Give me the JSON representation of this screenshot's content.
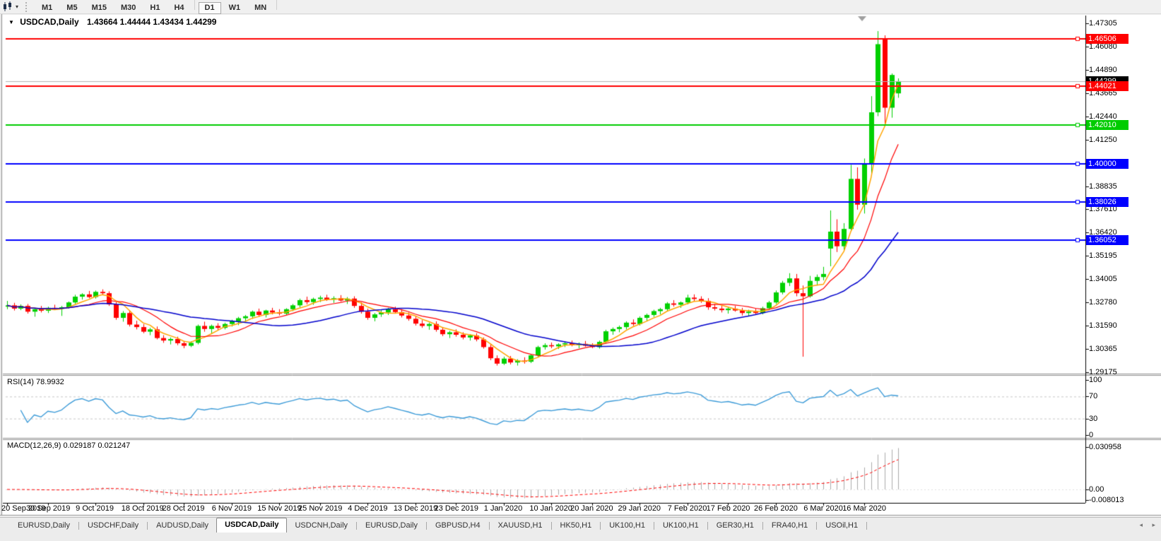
{
  "toolbar": {
    "caret": "▾",
    "timeframes": [
      "M1",
      "M5",
      "M15",
      "M30",
      "H1",
      "H4",
      "D1",
      "W1",
      "MN"
    ],
    "active_timeframe": "D1"
  },
  "chart": {
    "collapse_arrow": "▼",
    "title": "USDCAD,Daily",
    "ohlc_text": "1.43664 1.44444 1.43434 1.44299",
    "price_axis_ticks": [
      "1.47305",
      "1.46080",
      "1.44890",
      "1.43665",
      "1.42440",
      "1.41250",
      "1.38835",
      "1.37610",
      "1.36420",
      "1.35195",
      "1.34005",
      "1.32780",
      "1.31590",
      "1.30365",
      "1.29175"
    ],
    "price_lines": [
      {
        "price": 1.46506,
        "label": "1.46506",
        "color": "#FF0000"
      },
      {
        "price": 1.44021,
        "label": "1.44021",
        "color": "#FF0000"
      },
      {
        "price": 1.4201,
        "label": "1.42010",
        "color": "#00CC00"
      },
      {
        "price": 1.4,
        "label": "1.40000",
        "color": "#0000FF"
      },
      {
        "price": 1.38026,
        "label": "1.38026",
        "color": "#0000FF"
      },
      {
        "price": 1.36052,
        "label": "1.36052",
        "color": "#0000FF"
      }
    ],
    "current_price": {
      "price": 1.44299,
      "label": "1.44299",
      "line_color": "#b4b4b4",
      "label_bg": "#000000"
    }
  },
  "chart_data": {
    "type": "candlestick",
    "symbol": "USDCAD",
    "timeframe": "Daily",
    "last_bar": {
      "open": 1.43664,
      "high": 1.44444,
      "low": 1.43434,
      "close": 1.44299
    },
    "price_axis_range": {
      "top": 1.47305,
      "bottom": 1.29175
    },
    "up_color": "#00D000",
    "down_color": "#FF0000",
    "moving_averages": [
      {
        "name": "fast",
        "period": 5,
        "color": "#FFA500"
      },
      {
        "name": "mid",
        "period": 10,
        "color": "#FF0000"
      },
      {
        "name": "slow",
        "period": 25,
        "color": "#0000CC"
      }
    ],
    "candles": [
      [
        1.3258,
        1.3288,
        1.3245,
        1.3265
      ],
      [
        1.3265,
        1.3278,
        1.3238,
        1.3248
      ],
      [
        1.3248,
        1.327,
        1.324,
        1.3262
      ],
      [
        1.3262,
        1.3272,
        1.3222,
        1.3232
      ],
      [
        1.3232,
        1.3252,
        1.3206,
        1.3245
      ],
      [
        1.3245,
        1.3262,
        1.3228,
        1.3237
      ],
      [
        1.3237,
        1.3258,
        1.3225,
        1.3252
      ],
      [
        1.3252,
        1.3268,
        1.3242,
        1.3247
      ],
      [
        1.3247,
        1.3262,
        1.321,
        1.3255
      ],
      [
        1.3255,
        1.3285,
        1.3248,
        1.328
      ],
      [
        1.328,
        1.332,
        1.3272,
        1.331
      ],
      [
        1.331,
        1.3328,
        1.3295,
        1.3322
      ],
      [
        1.3322,
        1.334,
        1.3302,
        1.3308
      ],
      [
        1.3308,
        1.3342,
        1.33,
        1.3335
      ],
      [
        1.3335,
        1.3348,
        1.332,
        1.3328
      ],
      [
        1.3328,
        1.3338,
        1.3262,
        1.327
      ],
      [
        1.327,
        1.3282,
        1.319,
        1.32
      ],
      [
        1.32,
        1.3235,
        1.318,
        1.3225
      ],
      [
        1.3225,
        1.324,
        1.3155,
        1.3165
      ],
      [
        1.3165,
        1.3185,
        1.314,
        1.3152
      ],
      [
        1.3152,
        1.3168,
        1.312,
        1.3128
      ],
      [
        1.3128,
        1.3148,
        1.311,
        1.314
      ],
      [
        1.314,
        1.3155,
        1.3088,
        1.3095
      ],
      [
        1.3095,
        1.311,
        1.307,
        1.3082
      ],
      [
        1.3082,
        1.3098,
        1.3062,
        1.309
      ],
      [
        1.309,
        1.3102,
        1.3058,
        1.3068
      ],
      [
        1.3068,
        1.308,
        1.3042,
        1.3055
      ],
      [
        1.3055,
        1.3078,
        1.3048,
        1.307
      ],
      [
        1.307,
        1.3165,
        1.3062,
        1.3158
      ],
      [
        1.3158,
        1.318,
        1.3128,
        1.3142
      ],
      [
        1.3142,
        1.3165,
        1.3118,
        1.3158
      ],
      [
        1.3158,
        1.3172,
        1.3135,
        1.3148
      ],
      [
        1.3148,
        1.3175,
        1.314,
        1.3168
      ],
      [
        1.3168,
        1.319,
        1.3155,
        1.3182
      ],
      [
        1.3182,
        1.3205,
        1.3162,
        1.3198
      ],
      [
        1.3198,
        1.3215,
        1.318,
        1.3208
      ],
      [
        1.3208,
        1.3238,
        1.3195,
        1.3232
      ],
      [
        1.3232,
        1.3248,
        1.3205,
        1.3215
      ],
      [
        1.3215,
        1.3242,
        1.3202,
        1.3238
      ],
      [
        1.3238,
        1.3252,
        1.3218,
        1.3228
      ],
      [
        1.3228,
        1.3245,
        1.3212,
        1.3222
      ],
      [
        1.3222,
        1.325,
        1.3215,
        1.3245
      ],
      [
        1.3245,
        1.3272,
        1.3235,
        1.3265
      ],
      [
        1.3265,
        1.33,
        1.3255,
        1.3292
      ],
      [
        1.3292,
        1.331,
        1.327,
        1.3282
      ],
      [
        1.3282,
        1.3305,
        1.3268,
        1.3298
      ],
      [
        1.3298,
        1.3315,
        1.3282,
        1.3305
      ],
      [
        1.3305,
        1.332,
        1.3288,
        1.3295
      ],
      [
        1.3295,
        1.3312,
        1.3278,
        1.3302
      ],
      [
        1.3302,
        1.3318,
        1.3285,
        1.329
      ],
      [
        1.329,
        1.3308,
        1.3272,
        1.33
      ],
      [
        1.33,
        1.3312,
        1.3252,
        1.3262
      ],
      [
        1.3262,
        1.328,
        1.3222,
        1.3232
      ],
      [
        1.3232,
        1.3248,
        1.319,
        1.32
      ],
      [
        1.32,
        1.3225,
        1.3182,
        1.3218
      ],
      [
        1.3218,
        1.324,
        1.3205,
        1.3228
      ],
      [
        1.3228,
        1.3252,
        1.3215,
        1.3245
      ],
      [
        1.3245,
        1.3258,
        1.3222,
        1.323
      ],
      [
        1.323,
        1.3245,
        1.3202,
        1.3212
      ],
      [
        1.3212,
        1.3228,
        1.3185,
        1.3195
      ],
      [
        1.3195,
        1.321,
        1.316,
        1.317
      ],
      [
        1.317,
        1.3188,
        1.3148,
        1.3158
      ],
      [
        1.3158,
        1.3175,
        1.3138,
        1.3168
      ],
      [
        1.3168,
        1.3182,
        1.3128,
        1.3138
      ],
      [
        1.3138,
        1.3152,
        1.3105,
        1.3115
      ],
      [
        1.3115,
        1.3132,
        1.3095,
        1.3125
      ],
      [
        1.3125,
        1.314,
        1.3102,
        1.3112
      ],
      [
        1.3112,
        1.3125,
        1.3088,
        1.3098
      ],
      [
        1.3098,
        1.3115,
        1.3082,
        1.3108
      ],
      [
        1.3108,
        1.312,
        1.3078,
        1.3088
      ],
      [
        1.3088,
        1.3098,
        1.304,
        1.3048
      ],
      [
        1.3048,
        1.3062,
        1.298,
        1.299
      ],
      [
        1.299,
        1.3005,
        1.2952,
        1.2962
      ],
      [
        1.2962,
        1.2998,
        1.2955,
        1.2988
      ],
      [
        1.2988,
        1.3002,
        1.2958,
        1.2968
      ],
      [
        1.2968,
        1.2985,
        1.2952,
        1.2978
      ],
      [
        1.2978,
        1.2995,
        1.2962,
        1.2972
      ],
      [
        1.2972,
        1.3012,
        1.2965,
        1.3005
      ],
      [
        1.3005,
        1.3055,
        1.2998,
        1.3048
      ],
      [
        1.3048,
        1.3068,
        1.3035,
        1.3058
      ],
      [
        1.3058,
        1.3072,
        1.3042,
        1.3052
      ],
      [
        1.3052,
        1.3068,
        1.3038,
        1.3062
      ],
      [
        1.3062,
        1.3078,
        1.3048,
        1.3068
      ],
      [
        1.3068,
        1.3082,
        1.3052,
        1.3058
      ],
      [
        1.3058,
        1.3072,
        1.3042,
        1.3065
      ],
      [
        1.3065,
        1.308,
        1.305,
        1.3055
      ],
      [
        1.3055,
        1.3068,
        1.3042,
        1.3048
      ],
      [
        1.3048,
        1.3082,
        1.304,
        1.3075
      ],
      [
        1.3075,
        1.3138,
        1.3068,
        1.313
      ],
      [
        1.313,
        1.315,
        1.3112,
        1.3142
      ],
      [
        1.3142,
        1.316,
        1.3125,
        1.3152
      ],
      [
        1.3152,
        1.3182,
        1.314,
        1.3175
      ],
      [
        1.3175,
        1.3192,
        1.3158,
        1.3168
      ],
      [
        1.3168,
        1.3208,
        1.316,
        1.32
      ],
      [
        1.32,
        1.3222,
        1.3185,
        1.3215
      ],
      [
        1.3215,
        1.3242,
        1.3205,
        1.3235
      ],
      [
        1.3235,
        1.3252,
        1.3218,
        1.3245
      ],
      [
        1.3245,
        1.3282,
        1.3235,
        1.3275
      ],
      [
        1.3275,
        1.3292,
        1.3258,
        1.3268
      ],
      [
        1.3268,
        1.3285,
        1.3252,
        1.328
      ],
      [
        1.328,
        1.332,
        1.327,
        1.3305
      ],
      [
        1.3305,
        1.3322,
        1.3288,
        1.3298
      ],
      [
        1.3298,
        1.3312,
        1.3278,
        1.3288
      ],
      [
        1.3288,
        1.3302,
        1.3242,
        1.3255
      ],
      [
        1.3255,
        1.3272,
        1.3238,
        1.3248
      ],
      [
        1.3248,
        1.3262,
        1.3228,
        1.324
      ],
      [
        1.324,
        1.3255,
        1.3222,
        1.3248
      ],
      [
        1.3248,
        1.3262,
        1.3232,
        1.3238
      ],
      [
        1.3238,
        1.3252,
        1.3212,
        1.3225
      ],
      [
        1.3225,
        1.3242,
        1.3208,
        1.3232
      ],
      [
        1.3232,
        1.3248,
        1.3215,
        1.3225
      ],
      [
        1.3225,
        1.3258,
        1.3218,
        1.325
      ],
      [
        1.325,
        1.3288,
        1.3242,
        1.328
      ],
      [
        1.328,
        1.3342,
        1.3272,
        1.3332
      ],
      [
        1.3332,
        1.3392,
        1.3322,
        1.3382
      ],
      [
        1.3382,
        1.3432,
        1.3365,
        1.3405
      ],
      [
        1.3405,
        1.3428,
        1.3312,
        1.3328
      ],
      [
        1.3328,
        1.3368,
        1.2998,
        1.3312
      ],
      [
        1.3312,
        1.3418,
        1.3305,
        1.3392
      ],
      [
        1.3392,
        1.3425,
        1.3368,
        1.3412
      ],
      [
        1.3412,
        1.3465,
        1.3395,
        1.3428
      ],
      [
        1.356,
        1.3758,
        1.3468,
        1.3648
      ],
      [
        1.3648,
        1.3712,
        1.3542,
        1.3572
      ],
      [
        1.3572,
        1.3692,
        1.3552,
        1.3662
      ],
      [
        1.3662,
        1.3995,
        1.365,
        1.3922
      ],
      [
        1.3922,
        1.3982,
        1.3762,
        1.3788
      ],
      [
        1.3788,
        1.4028,
        1.3742,
        1.3998
      ],
      [
        1.3998,
        1.4352,
        1.3942,
        1.4268
      ],
      [
        1.4268,
        1.469,
        1.4248,
        1.4622
      ],
      [
        1.465,
        1.4668,
        1.4208,
        1.4292
      ],
      [
        1.4292,
        1.447,
        1.424,
        1.4462
      ],
      [
        1.43664,
        1.44444,
        1.43434,
        1.44299
      ]
    ],
    "date_ticks": [
      {
        "bar": 0,
        "label": "20 Sep 2019"
      },
      {
        "bar": 6,
        "label": "30 Sep 2019"
      },
      {
        "bar": 13,
        "label": "9 Oct 2019"
      },
      {
        "bar": 20,
        "label": "18 Oct 2019"
      },
      {
        "bar": 26,
        "label": "28 Oct 2019"
      },
      {
        "bar": 33,
        "label": "6 Nov 2019"
      },
      {
        "bar": 40,
        "label": "15 Nov 2019"
      },
      {
        "bar": 46,
        "label": "25 Nov 2019"
      },
      {
        "bar": 53,
        "label": "4 Dec 2019"
      },
      {
        "bar": 60,
        "label": "13 Dec 2019"
      },
      {
        "bar": 66,
        "label": "23 Dec 2019"
      },
      {
        "bar": 73,
        "label": "1 Jan 2020"
      },
      {
        "bar": 80,
        "label": "10 Jan 2020"
      },
      {
        "bar": 86,
        "label": "20 Jan 2020"
      },
      {
        "bar": 93,
        "label": "29 Jan 2020"
      },
      {
        "bar": 100,
        "label": "7 Feb 2020"
      },
      {
        "bar": 106,
        "label": "17 Feb 2020"
      },
      {
        "bar": 113,
        "label": "26 Feb 2020"
      },
      {
        "bar": 120,
        "label": "6 Mar 2020"
      },
      {
        "bar": 126,
        "label": "16 Mar 2020"
      }
    ]
  },
  "rsi_pane": {
    "label": "RSI(14) 78.9932",
    "name": "RSI",
    "period": 14,
    "value": 78.9932,
    "levels": [
      {
        "label": "100",
        "value": 100
      },
      {
        "label": "70",
        "value": 70
      },
      {
        "label": "30",
        "value": 30
      },
      {
        "label": "0",
        "value": 0
      }
    ],
    "dashed_levels": [
      70,
      30
    ],
    "line_color": "#3C9BD8"
  },
  "macd_pane": {
    "label": "MACD(12,26,9) 0.029187 0.021247",
    "fast": 12,
    "slow": 26,
    "signal": 9,
    "macd_value": 0.029187,
    "signal_value": 0.021247,
    "axis_ticks": [
      {
        "label": "0.030958",
        "value": 0.030958
      },
      {
        "label": "0.00",
        "value": 0
      },
      {
        "label": "-0.008013",
        "value": -0.008013
      }
    ],
    "histogram_color": "#ABABAB",
    "signal_color": "#FF0000"
  },
  "tab_bar": {
    "tabs": [
      "EURUSD,Daily",
      "USDCHF,Daily",
      "AUDUSD,Daily",
      "USDCAD,Daily",
      "USDCNH,Daily",
      "EURUSD,Daily",
      "GBPUSD,H4",
      "XAUUSD,H1",
      "HK50,H1",
      "UK100,H1",
      "UK100,H1",
      "GER30,H1",
      "FRA40,H1",
      "USOil,H1"
    ],
    "active_index": 3,
    "scroll_left_icon": "◂",
    "scroll_right_icon": "▸"
  }
}
